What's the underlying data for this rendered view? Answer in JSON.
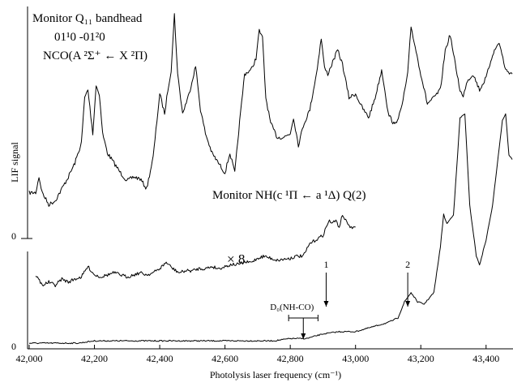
{
  "chart_data": {
    "type": "line",
    "xlabel": "Photolysis laser frequency (cm⁻¹)",
    "ylabel": "LIF signal",
    "xlim": [
      42000,
      43480
    ],
    "x_ticks": [
      {
        "value": 42000,
        "label": "42,000"
      },
      {
        "value": 42200,
        "label": "42,200"
      },
      {
        "value": 42400,
        "label": "42,400"
      },
      {
        "value": 42600,
        "label": "42,600"
      },
      {
        "value": 42800,
        "label": "42,800"
      },
      {
        "value": 43000,
        "label": "43,000"
      },
      {
        "value": 43200,
        "label": "43,200"
      },
      {
        "value": 43400,
        "label": "43,400"
      }
    ],
    "y_zero_labels": [
      "0",
      "0"
    ],
    "panels": [
      {
        "label_lines": [
          "Monitor Q₁₁ bandhead",
          "01¹0 -01²0",
          "NCO(A ²Σ⁺ ← X ²Π)"
        ],
        "ylim": [
          0,
          1
        ],
        "series": [
          {
            "x": [
              42000,
              42020,
              42030,
              42040,
              42060,
              42080,
              42100,
              42120,
              42140,
              42160,
              42170,
              42180,
              42195,
              42205,
              42215,
              42225,
              42240,
              42260,
              42280,
              42300,
              42320,
              42340,
              42360,
              42380,
              42400,
              42415,
              42425,
              42435,
              42445,
              42455,
              42470,
              42490,
              42510,
              42525,
              42540,
              42560,
              42580,
              42600,
              42615,
              42630,
              42645,
              42660,
              42680,
              42695,
              42705,
              42715,
              42725,
              42740,
              42760,
              42780,
              42800,
              42810,
              42825,
              42840,
              42860,
              42880,
              42895,
              42905,
              42915,
              42930,
              42945,
              42960,
              42980,
              43000,
              43020,
              43040,
              43060,
              43080,
              43090,
              43100,
              43120,
              43140,
              43160,
              43170,
              43180,
              43200,
              43220,
              43240,
              43260,
              43275,
              43290,
              43300,
              43320,
              43330,
              43340,
              43360,
              43380,
              43400,
              43420,
              43440,
              43460,
              43480
            ],
            "y": [
              0.1,
              0.1,
              0.18,
              0.1,
              0.04,
              0.06,
              0.12,
              0.18,
              0.25,
              0.35,
              0.58,
              0.62,
              0.4,
              0.64,
              0.6,
              0.4,
              0.3,
              0.25,
              0.2,
              0.16,
              0.18,
              0.17,
              0.12,
              0.28,
              0.6,
              0.5,
              0.62,
              0.72,
              1.0,
              0.7,
              0.5,
              0.6,
              0.74,
              0.52,
              0.4,
              0.3,
              0.25,
              0.2,
              0.3,
              0.2,
              0.46,
              0.7,
              0.72,
              0.78,
              0.92,
              0.88,
              0.58,
              0.45,
              0.38,
              0.38,
              0.4,
              0.48,
              0.34,
              0.44,
              0.52,
              0.7,
              0.88,
              0.73,
              0.7,
              0.76,
              0.82,
              0.75,
              0.58,
              0.6,
              0.53,
              0.48,
              0.58,
              0.72,
              0.62,
              0.5,
              0.44,
              0.52,
              0.7,
              0.94,
              0.86,
              0.7,
              0.55,
              0.58,
              0.62,
              0.82,
              0.9,
              0.8,
              0.62,
              0.58,
              0.66,
              0.7,
              0.62,
              0.68,
              0.8,
              0.86,
              0.72,
              0.7
            ]
          }
        ]
      },
      {
        "label": "Monitor NH(c ¹Π ← a ¹Δ) Q(2)",
        "ylim": [
          0,
          1
        ],
        "series": [
          {
            "x": [
              42000,
              42050,
              42100,
              42150,
              42200,
              42250,
              42300,
              42350,
              42400,
              42450,
              42500,
              42550,
              42600,
              42650,
              42700,
              42750,
              42800,
              42850,
              42900,
              42950,
              43000,
              43050,
              43100,
              43130,
              43150,
              43170,
              43190,
              43210,
              43240,
              43260,
              43270,
              43280,
              43300,
              43310,
              43320,
              43335,
              43350,
              43370,
              43380,
              43400,
              43420,
              43440,
              43450,
              43460,
              43470,
              43480
            ],
            "y": [
              0.0,
              0.0,
              0.0,
              0.0,
              0.01,
              0.01,
              0.01,
              0.01,
              0.01,
              0.01,
              0.01,
              0.01,
              0.01,
              0.01,
              0.01,
              0.01,
              0.02,
              0.02,
              0.04,
              0.05,
              0.05,
              0.07,
              0.09,
              0.11,
              0.18,
              0.22,
              0.18,
              0.17,
              0.22,
              0.42,
              0.56,
              0.52,
              0.56,
              0.76,
              0.98,
              1.0,
              0.6,
              0.38,
              0.34,
              0.45,
              0.6,
              0.85,
              0.97,
              1.0,
              0.82,
              0.8
            ]
          },
          {
            "name": "× 8",
            "x": [
              42020,
              42040,
              42060,
              42080,
              42100,
              42120,
              42140,
              42160,
              42180,
              42200,
              42220,
              42240,
              42260,
              42280,
              42300,
              42320,
              42340,
              42360,
              42380,
              42400,
              42420,
              42440,
              42460,
              42480,
              42500,
              42520,
              42540,
              42560,
              42580,
              42600,
              42620,
              42640,
              42660,
              42680,
              42700,
              42720,
              42740,
              42760,
              42780,
              42800,
              42820,
              42840,
              42860,
              42880,
              42900,
              42910,
              42920,
              42930,
              42940,
              42950,
              42960,
              42970,
              42980,
              42990,
              43000
            ],
            "y": [
              0.4,
              0.3,
              0.33,
              0.3,
              0.36,
              0.33,
              0.36,
              0.38,
              0.48,
              0.4,
              0.38,
              0.4,
              0.42,
              0.4,
              0.38,
              0.4,
              0.42,
              0.4,
              0.42,
              0.46,
              0.52,
              0.46,
              0.42,
              0.44,
              0.44,
              0.46,
              0.46,
              0.48,
              0.46,
              0.48,
              0.5,
              0.5,
              0.52,
              0.52,
              0.56,
              0.58,
              0.56,
              0.54,
              0.55,
              0.56,
              0.58,
              0.58,
              0.7,
              0.74,
              0.78,
              0.86,
              0.92,
              0.9,
              0.92,
              0.86,
              0.98,
              0.92,
              0.88,
              0.84,
              0.86
            ]
          }
        ]
      }
    ],
    "annotations": [
      {
        "text": "1",
        "x": 42910
      },
      {
        "text": "2",
        "x": 43160
      },
      {
        "text": "D₀(NH-CO)",
        "x": 42840,
        "xerr": 45
      }
    ]
  }
}
